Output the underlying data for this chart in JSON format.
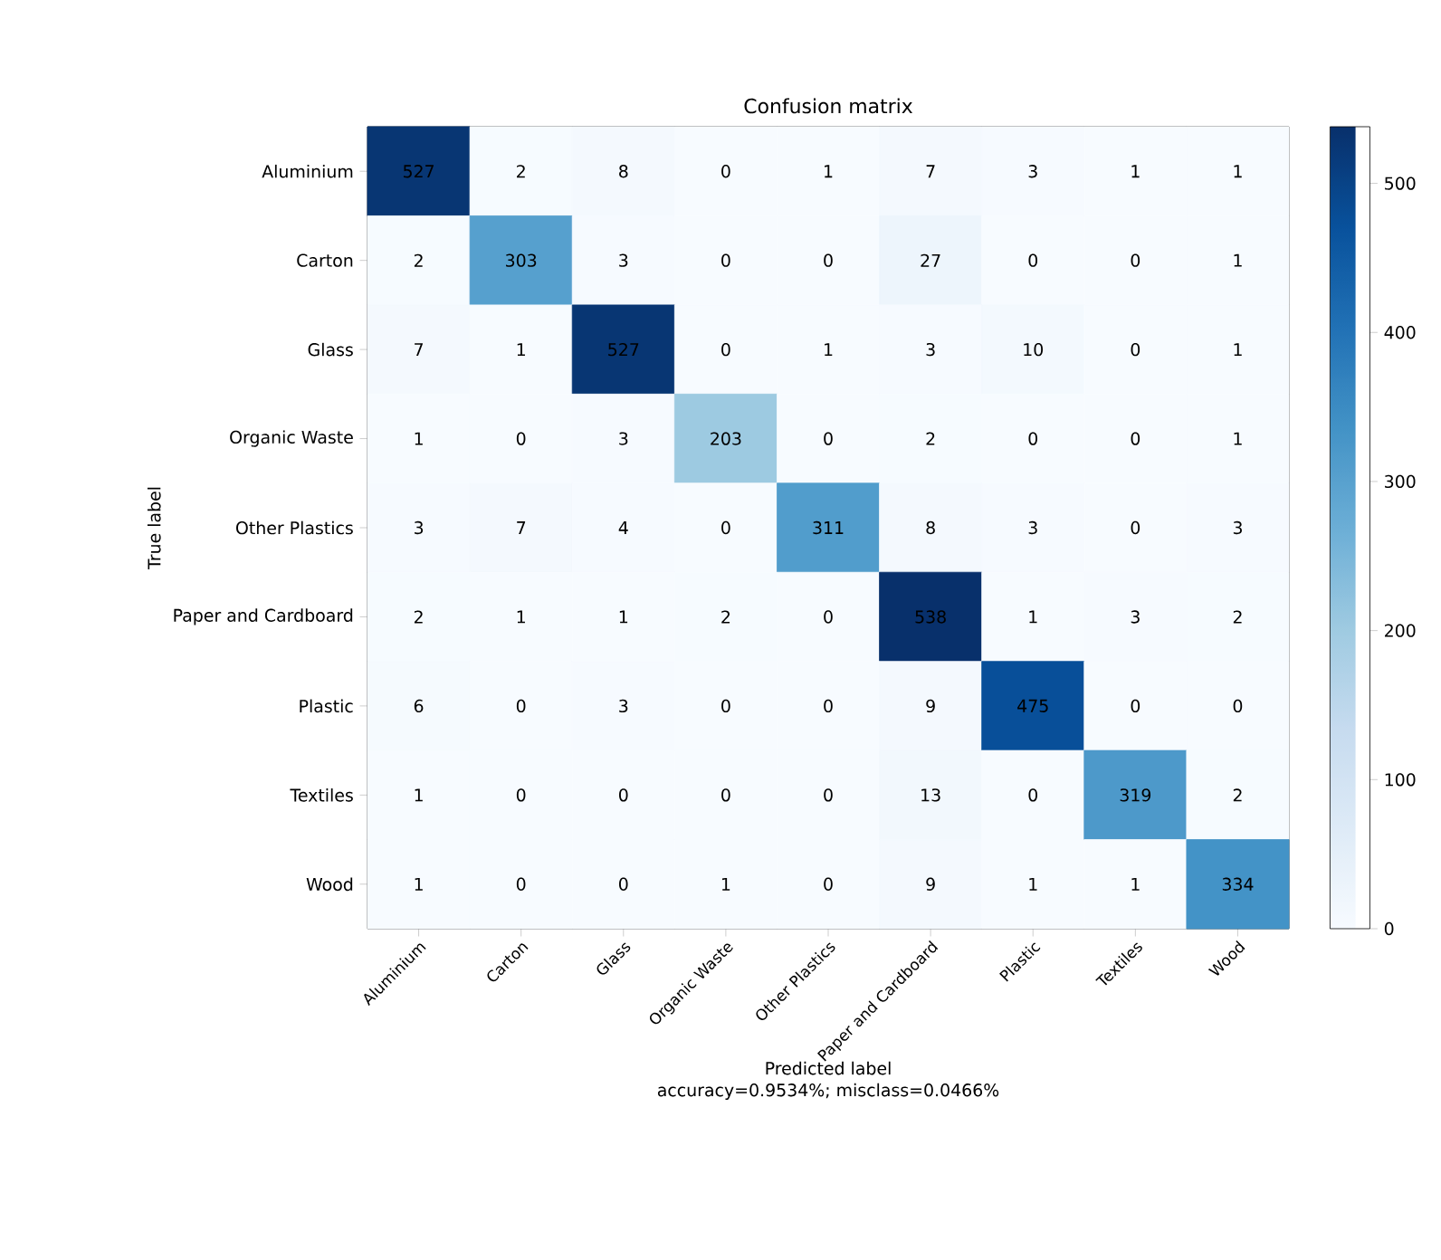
{
  "chart_data": {
    "type": "heatmap",
    "title": "Confusion matrix",
    "xlabel": "Predicted label",
    "ylabel": "True label",
    "categories": [
      "Aluminium",
      "Carton",
      "Glass",
      "Organic Waste",
      "Other Plastics",
      "Paper and Cardboard",
      "Plastic",
      "Textiles",
      "Wood"
    ],
    "y_categories": [
      "Aluminium",
      "Carton",
      "Glass",
      "Organic Waste",
      "Other Plastics",
      "Paper and Cardboard",
      "Plastic",
      "Textiles",
      "Wood"
    ],
    "cells": [
      [
        527,
        2,
        8,
        0,
        1,
        7,
        3,
        1,
        1
      ],
      [
        2,
        303,
        3,
        0,
        0,
        27,
        0,
        0,
        1
      ],
      [
        7,
        1,
        527,
        0,
        1,
        3,
        10,
        0,
        1
      ],
      [
        1,
        0,
        3,
        203,
        0,
        2,
        0,
        0,
        1
      ],
      [
        3,
        7,
        4,
        0,
        311,
        8,
        3,
        0,
        3
      ],
      [
        2,
        1,
        1,
        2,
        0,
        538,
        1,
        3,
        2
      ],
      [
        6,
        0,
        3,
        0,
        0,
        9,
        475,
        0,
        0
      ],
      [
        1,
        0,
        0,
        0,
        0,
        13,
        0,
        319,
        2
      ],
      [
        1,
        0,
        0,
        1,
        0,
        9,
        1,
        1,
        334
      ]
    ],
    "data_labels": true,
    "clim": [
      0,
      538
    ],
    "cticks": [
      0,
      100,
      200,
      300,
      400,
      500
    ],
    "annotations": [
      "accuracy=0.9534%; misclass=0.0466%"
    ]
  }
}
